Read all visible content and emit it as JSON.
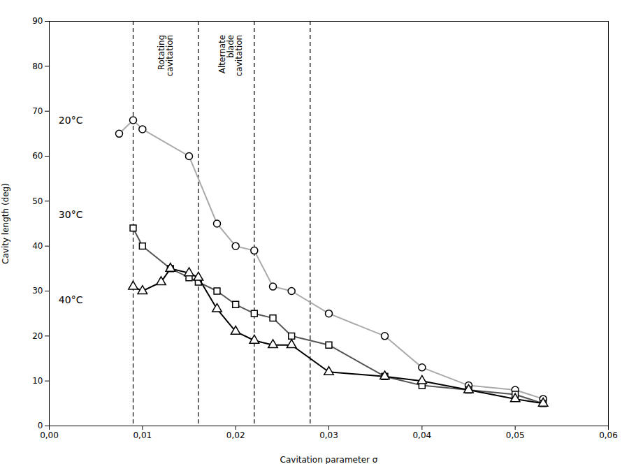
{
  "chart_data": {
    "type": "line",
    "xlabel": "Cavitation parameter σ",
    "ylabel": "Cavity length (deg)",
    "xlim": [
      0.0,
      0.06
    ],
    "ylim": [
      0,
      90
    ],
    "xticks": [
      {
        "value": 0.0,
        "label": "0,00"
      },
      {
        "value": 0.01,
        "label": "0,01"
      },
      {
        "value": 0.02,
        "label": "0,02"
      },
      {
        "value": 0.03,
        "label": "0,03"
      },
      {
        "value": 0.04,
        "label": "0,04"
      },
      {
        "value": 0.05,
        "label": "0,05"
      },
      {
        "value": 0.06,
        "label": "0,06"
      }
    ],
    "yticks": [
      0,
      10,
      20,
      30,
      40,
      50,
      60,
      70,
      80,
      90
    ],
    "grid": false,
    "series": [
      {
        "name": "20°C",
        "color": "#aaaaaa",
        "marker": "circle",
        "label": {
          "x": 0.001,
          "y": 68
        },
        "x": [
          0.0075,
          0.009,
          0.01,
          0.015,
          0.018,
          0.02,
          0.022,
          0.024,
          0.026,
          0.03,
          0.036,
          0.04,
          0.045,
          0.05,
          0.053
        ],
        "values": [
          65,
          68,
          66,
          60,
          45,
          40,
          39,
          31,
          30,
          25,
          20,
          13,
          9,
          8,
          6
        ]
      },
      {
        "name": "30°C",
        "color": "#555555",
        "marker": "square",
        "label": {
          "x": 0.001,
          "y": 47
        },
        "x": [
          0.009,
          0.01,
          0.013,
          0.015,
          0.016,
          0.018,
          0.02,
          0.022,
          0.024,
          0.026,
          0.03,
          0.036,
          0.04,
          0.045,
          0.05,
          0.053
        ],
        "values": [
          44,
          40,
          35,
          33,
          32,
          30,
          27,
          25,
          24,
          20,
          18,
          11,
          9,
          8,
          7,
          5
        ]
      },
      {
        "name": "40°C",
        "color": "#000000",
        "marker": "triangle",
        "label": {
          "x": 0.001,
          "y": 28
        },
        "x": [
          0.009,
          0.01,
          0.012,
          0.013,
          0.015,
          0.016,
          0.018,
          0.02,
          0.022,
          0.024,
          0.026,
          0.03,
          0.036,
          0.04,
          0.045,
          0.05,
          0.053
        ],
        "values": [
          31,
          30,
          32,
          35,
          34,
          33,
          26,
          21,
          19,
          18,
          18,
          12,
          11,
          10,
          8,
          6,
          5
        ]
      }
    ],
    "vlines": [
      0.009,
      0.016,
      0.022,
      0.028
    ],
    "annotations": [
      {
        "text": "Rotating\ncavitation",
        "x": 0.0125,
        "y": 87
      },
      {
        "text": "Alternate\nblade\ncavitation",
        "x": 0.0195,
        "y": 87
      }
    ]
  }
}
